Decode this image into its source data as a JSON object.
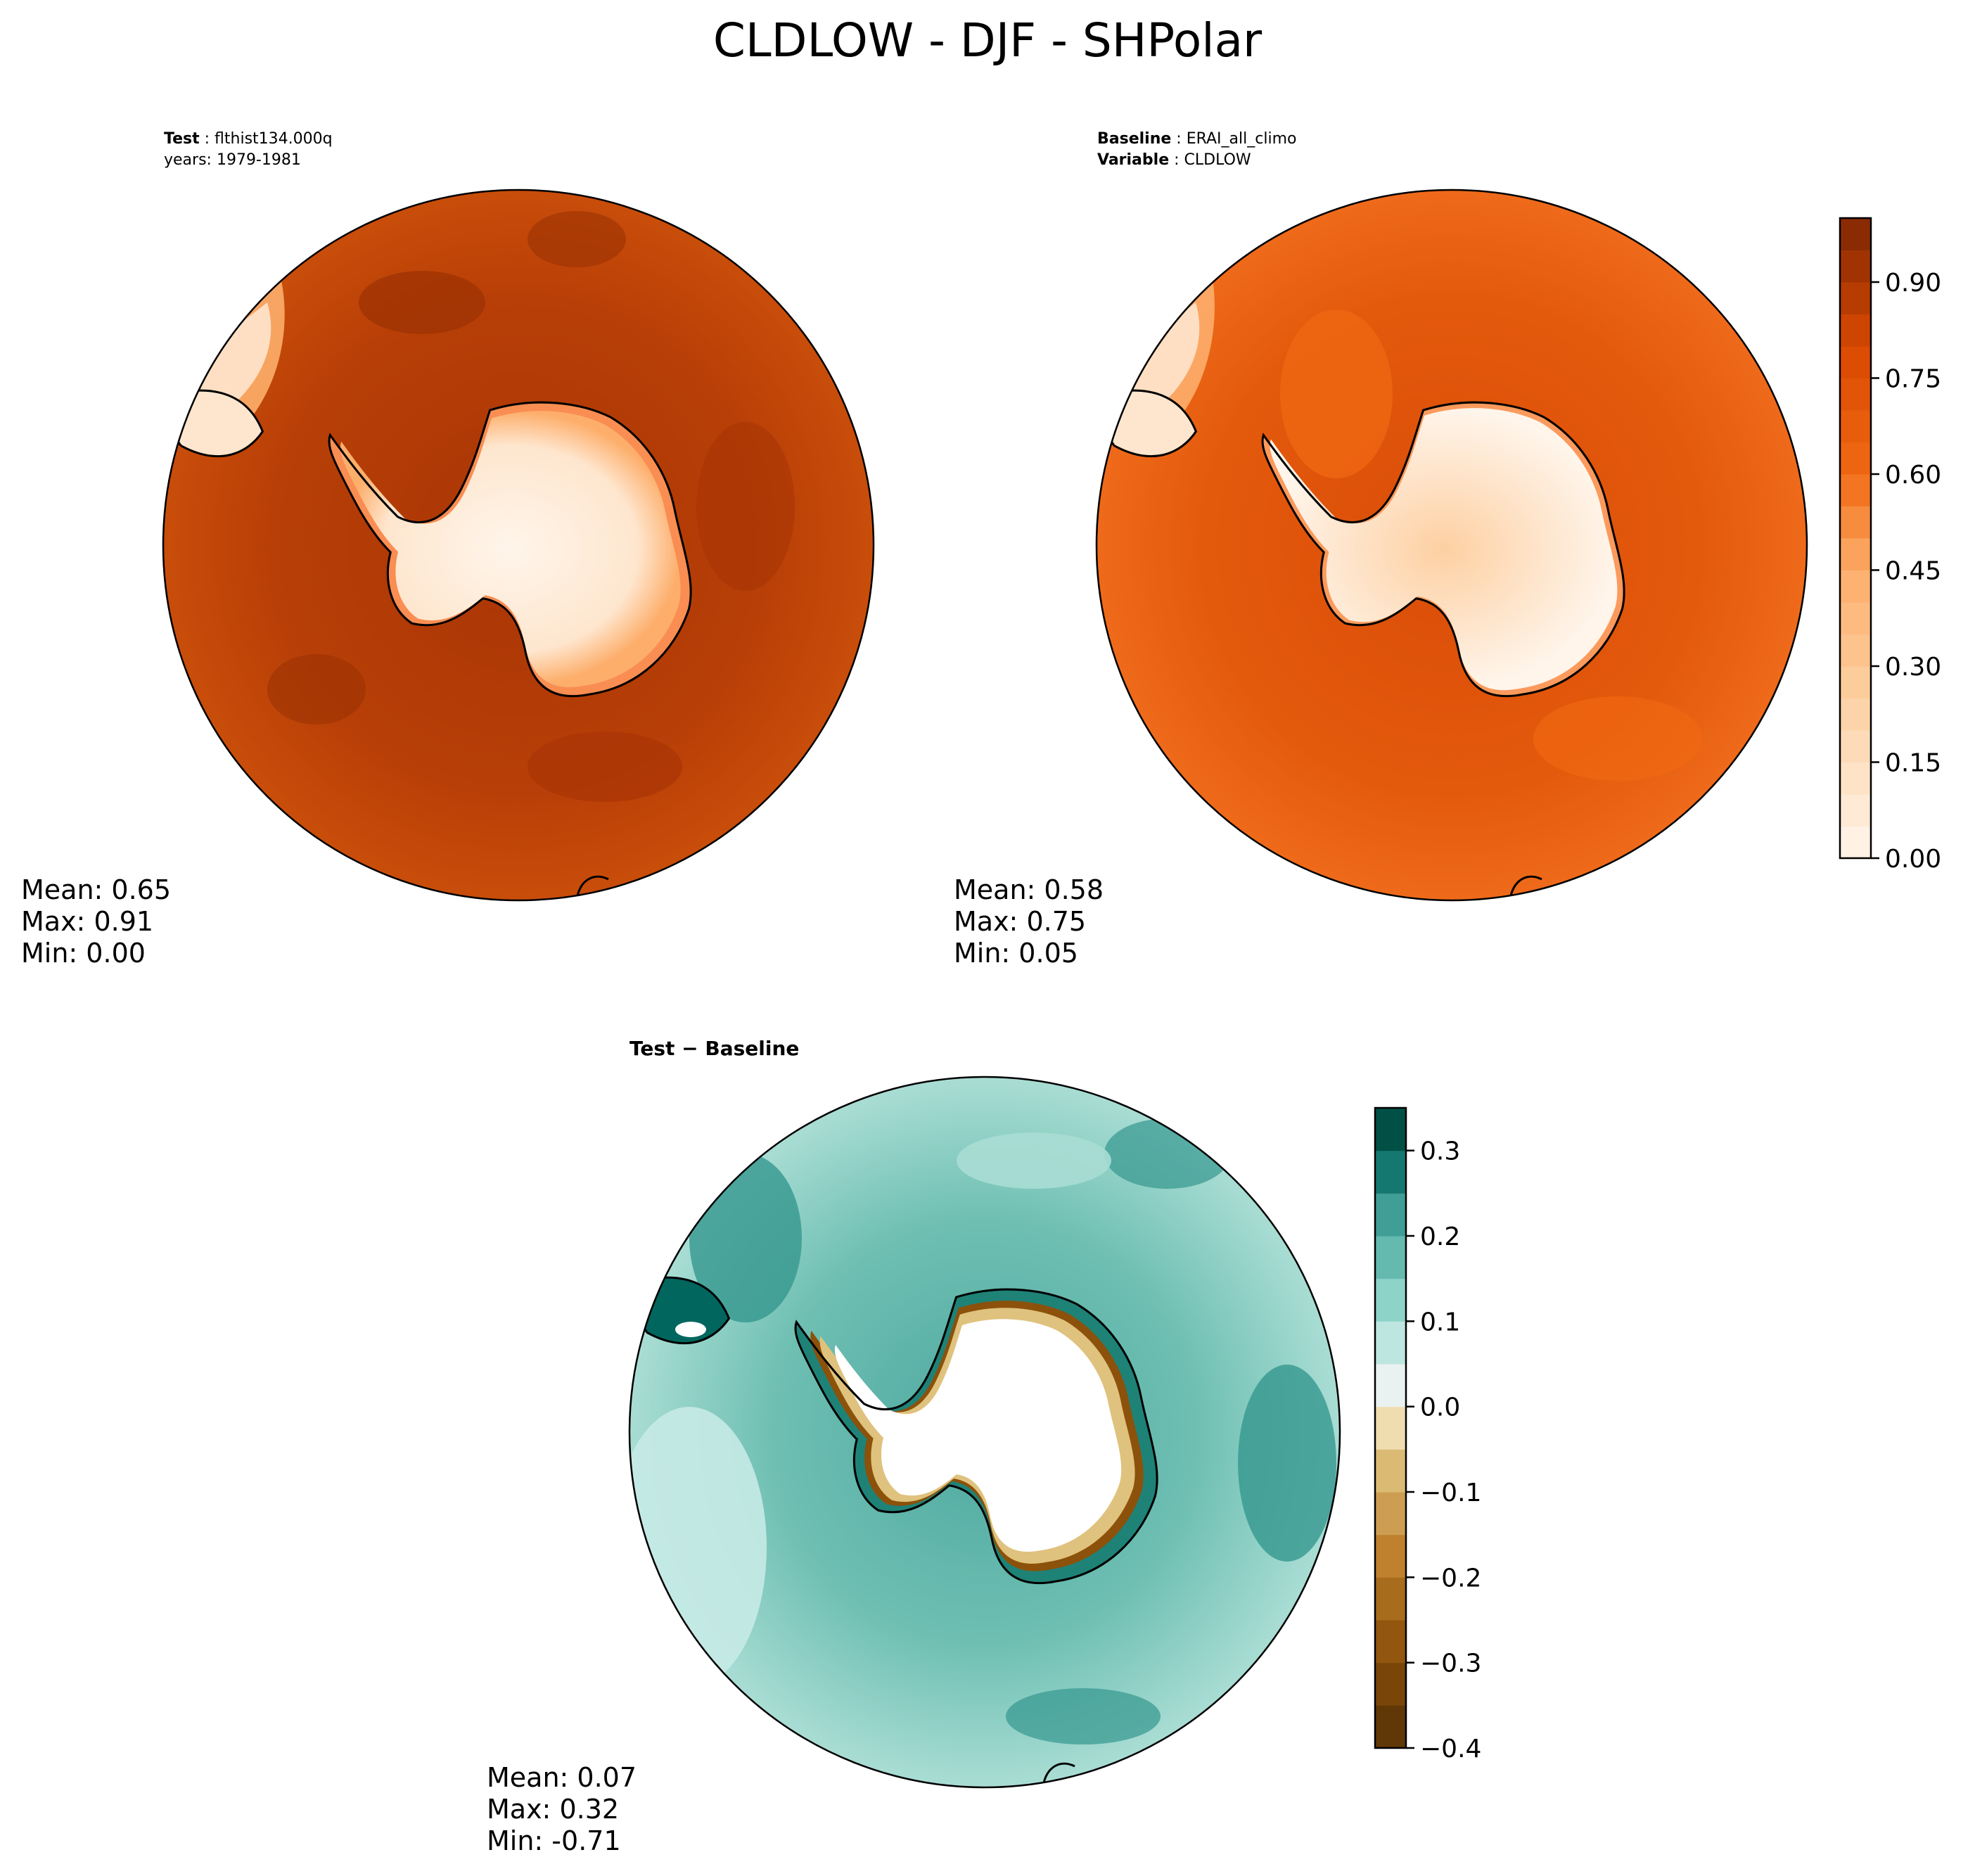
{
  "figure": {
    "title": "CLDLOW - DJF - SHPolar"
  },
  "chart_data": [
    {
      "type": "heatmap",
      "panel": "test",
      "projection": "south-polar-stereographic",
      "header": [
        {
          "label": "Test",
          "value": "flthist134.000q"
        },
        {
          "label": "",
          "value": "years: 1979-1981"
        }
      ],
      "stats": {
        "mean": "Mean:  0.65",
        "max": "Max:  0.91",
        "min": "Min:  0.00"
      },
      "ocean_level": 0.82,
      "colormap": "Oranges",
      "colors": {
        "low": "#fff5eb",
        "mid": "#f16913",
        "high": "#7f2704"
      }
    },
    {
      "type": "heatmap",
      "panel": "baseline",
      "projection": "south-polar-stereographic",
      "header": [
        {
          "label": "Baseline",
          "value": "ERAI_all_climo"
        },
        {
          "label": "Variable",
          "value": "CLDLOW"
        }
      ],
      "stats": {
        "mean": "Mean:  0.58",
        "max": "Max:  0.75",
        "min": "Min:  0.05"
      },
      "ocean_level": 0.68,
      "colormap": "Oranges",
      "colorbar": {
        "range": [
          0,
          1.0
        ],
        "levels": 20,
        "ticks": [
          "0.00",
          "0.15",
          "0.30",
          "0.45",
          "0.60",
          "0.75",
          "0.90"
        ],
        "tick_values": [
          0.0,
          0.15,
          0.3,
          0.45,
          0.6,
          0.75,
          0.9
        ]
      }
    },
    {
      "type": "heatmap",
      "panel": "difference",
      "projection": "south-polar-stereographic",
      "header": [
        {
          "label": "Test − Baseline",
          "value": ""
        }
      ],
      "stats": {
        "mean": "Mean:  0.07",
        "max": "Max:  0.32",
        "min": "Min: -0.71"
      },
      "colormap": "BrBG",
      "colors": {
        "neg": "#543005",
        "zero": "#f5f5f5",
        "pos": "#003c30"
      },
      "colorbar": {
        "range": [
          -0.4,
          0.35
        ],
        "levels": 15,
        "ticks": [
          "−0.4",
          "−0.3",
          "−0.2",
          "−0.1",
          "0.0",
          "0.1",
          "0.2",
          "0.3"
        ],
        "tick_values": [
          -0.4,
          -0.3,
          -0.2,
          -0.1,
          0.0,
          0.1,
          0.2,
          0.3
        ]
      }
    }
  ]
}
